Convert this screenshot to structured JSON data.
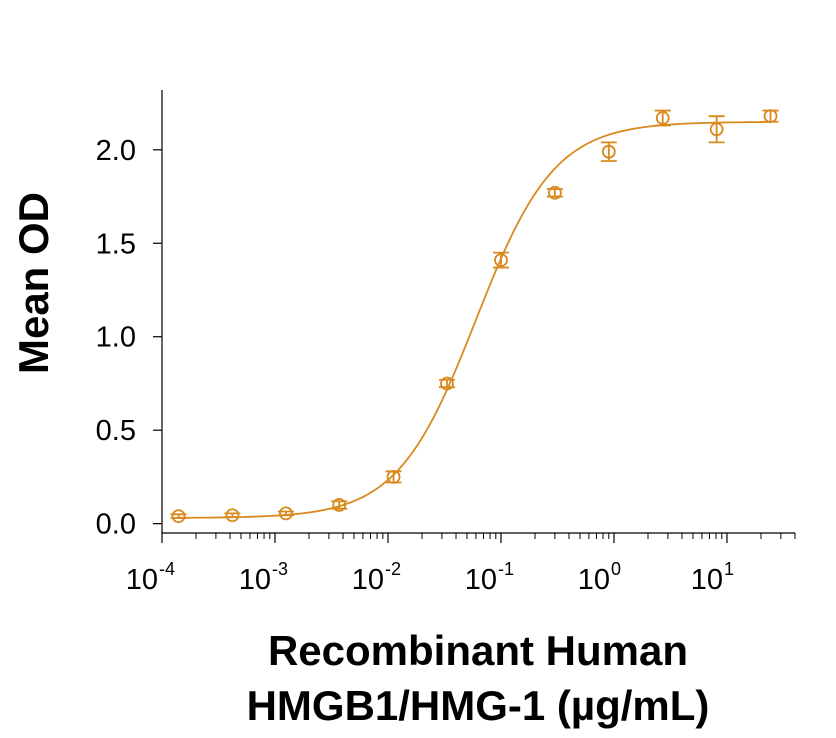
{
  "chart_data": {
    "type": "scatter",
    "title": "",
    "xlabel_lines": [
      "Recombinant Human",
      "HMGB1/HMG-1 (µg/mL)"
    ],
    "ylabel": "Mean OD",
    "x_scale": "log",
    "xlim": [
      0.0001,
      40
    ],
    "ylim": [
      -0.05,
      2.32
    ],
    "x_ticks": [
      {
        "base": "10",
        "exp": "-4"
      },
      {
        "base": "10",
        "exp": "-3"
      },
      {
        "base": "10",
        "exp": "-2"
      },
      {
        "base": "10",
        "exp": "-1"
      },
      {
        "base": "10",
        "exp": "0"
      },
      {
        "base": "10",
        "exp": "1"
      }
    ],
    "y_ticks": [
      "0.0",
      "0.5",
      "1.0",
      "1.5",
      "2.0"
    ],
    "grid": false,
    "legend": "none",
    "color": "#D98A1E",
    "series": [
      {
        "x": [
          0.00014,
          0.00042,
          0.00125,
          0.0037,
          0.0112,
          0.0333,
          0.1,
          0.3,
          0.9,
          2.7,
          8.1,
          24.3
        ],
        "y": [
          0.04,
          0.045,
          0.055,
          0.1,
          0.25,
          0.75,
          1.41,
          1.77,
          1.99,
          2.17,
          2.11,
          2.18
        ],
        "err": [
          0.01,
          0.01,
          0.01,
          0.02,
          0.03,
          0.02,
          0.04,
          0.02,
          0.05,
          0.04,
          0.07,
          0.03
        ]
      }
    ],
    "fit": {
      "model": "4PL",
      "bottom": 0.03,
      "top": 2.15,
      "ec50": 0.06,
      "hill": 1.25
    }
  }
}
